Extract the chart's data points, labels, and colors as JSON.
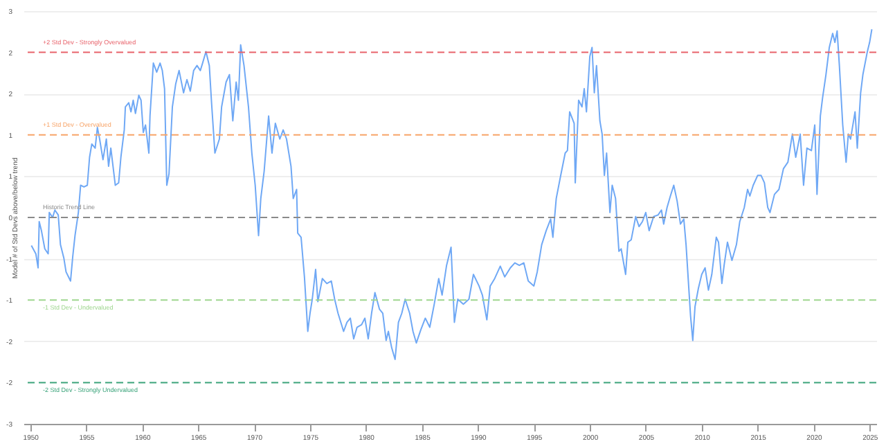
{
  "chart_data": {
    "type": "line",
    "ylabel": "Model # of Std Devs above/below trend",
    "xlim": [
      1949.4,
      2025.6
    ],
    "xticks": [
      {
        "value": 1950,
        "label": "1950"
      },
      {
        "value": 1955,
        "label": "1955"
      },
      {
        "value": 1960,
        "label": "1960"
      },
      {
        "value": 1965,
        "label": "1965"
      },
      {
        "value": 1970,
        "label": "1970"
      },
      {
        "value": 1975,
        "label": "1975"
      },
      {
        "value": 1980,
        "label": "1980"
      },
      {
        "value": 1985,
        "label": "1985"
      },
      {
        "value": 1990,
        "label": "1990"
      },
      {
        "value": 1995,
        "label": "1995"
      },
      {
        "value": 2000,
        "label": "2000"
      },
      {
        "value": 2005,
        "label": "2005"
      },
      {
        "value": 2010,
        "label": "2010"
      },
      {
        "value": 2015,
        "label": "2015"
      },
      {
        "value": 2020,
        "label": "2020"
      },
      {
        "value": 2025,
        "label": "2025"
      }
    ],
    "ylim": [
      -2.5,
      2.5
    ],
    "yticks": [
      {
        "value": -2.5,
        "label": "-3"
      },
      {
        "value": -2,
        "label": "-2"
      },
      {
        "value": -1.5,
        "label": "-2"
      },
      {
        "value": -1,
        "label": "-1"
      },
      {
        "value": -0.5,
        "label": "-1"
      },
      0,
      {
        "value": 0.5,
        "label": "1"
      },
      1,
      {
        "value": 1.5,
        "label": "2"
      },
      2,
      {
        "value": 2.5,
        "label": "3"
      }
    ],
    "grid": "y",
    "marker": "none",
    "line_style": "solid",
    "series": [
      {
        "color": "#6fa8f5",
        "x": [
          1950.1,
          1950.5,
          1950.7,
          1950.8,
          1951.0,
          1951.3,
          1951.6,
          1951.7,
          1952.0,
          1952.2,
          1952.5,
          1952.7,
          1953.0,
          1953.2,
          1953.6,
          1953.8,
          1954.0,
          1954.3,
          1954.5,
          1954.8,
          1955.1,
          1955.3,
          1955.5,
          1955.8,
          1956.0,
          1956.2,
          1956.5,
          1956.8,
          1957.0,
          1957.2,
          1957.6,
          1957.9,
          1958.1,
          1958.4,
          1958.5,
          1958.8,
          1959.0,
          1959.2,
          1959.4,
          1959.7,
          1959.9,
          1960.1,
          1960.3,
          1960.6,
          1960.7,
          1961.0,
          1961.3,
          1961.6,
          1961.8,
          1962.0,
          1962.2,
          1962.4,
          1962.7,
          1963.0,
          1963.3,
          1963.7,
          1964.0,
          1964.3,
          1964.6,
          1964.9,
          1965.2,
          1965.4,
          1965.7,
          1966.0,
          1966.2,
          1966.5,
          1966.9,
          1967.1,
          1967.5,
          1967.8,
          1968.1,
          1968.4,
          1968.6,
          1968.8,
          1969.1,
          1969.5,
          1969.8,
          1970.1,
          1970.4,
          1970.6,
          1970.9,
          1971.3,
          1971.6,
          1971.9,
          1972.3,
          1972.6,
          1972.9,
          1973.3,
          1973.5,
          1973.8,
          1973.9,
          1974.2,
          1974.5,
          1974.8,
          1975.0,
          1975.2,
          1975.5,
          1975.7,
          1976.1,
          1976.5,
          1976.9,
          1977.2,
          1977.5,
          1978.0,
          1978.3,
          1978.6,
          1978.9,
          1979.2,
          1979.6,
          1979.9,
          1980.2,
          1980.5,
          1980.8,
          1981.2,
          1981.5,
          1981.8,
          1982.0,
          1982.3,
          1982.6,
          1982.9,
          1983.2,
          1983.5,
          1983.9,
          1984.2,
          1984.5,
          1984.9,
          1985.3,
          1985.7,
          1986.1,
          1986.5,
          1986.8,
          1987.2,
          1987.6,
          1987.9,
          1988.2,
          1988.7,
          1989.2,
          1989.6,
          1990.1,
          1990.4,
          1990.8,
          1991.1,
          1991.5,
          1992.0,
          1992.4,
          1992.9,
          1993.3,
          1993.7,
          1994.1,
          1994.5,
          1995.0,
          1995.3,
          1995.7,
          1996.1,
          1996.5,
          1996.7,
          1997.0,
          1997.4,
          1997.8,
          1998.0,
          1998.2,
          1998.6,
          1998.7,
          1999.0,
          1999.3,
          1999.5,
          1999.7,
          2000.0,
          2000.2,
          2000.4,
          2000.6,
          2000.9,
          2001.1,
          2001.3,
          2001.5,
          2001.8,
          2002.0,
          2002.3,
          2002.6,
          2002.8,
          2003.2,
          2003.4,
          2003.7,
          2004.1,
          2004.4,
          2004.7,
          2005.0,
          2005.3,
          2005.7,
          2006.1,
          2006.4,
          2006.6,
          2006.9,
          2007.2,
          2007.5,
          2007.8,
          2008.1,
          2008.4,
          2008.6,
          2009.0,
          2009.2,
          2009.4,
          2009.7,
          2010.0,
          2010.3,
          2010.6,
          2010.9,
          2011.3,
          2011.5,
          2011.8,
          2012.0,
          2012.3,
          2012.7,
          2013.1,
          2013.4,
          2013.8,
          2014.1,
          2014.3,
          2014.6,
          2015.0,
          2015.3,
          2015.6,
          2015.9,
          2016.1,
          2016.5,
          2016.9,
          2017.3,
          2017.7,
          2018.1,
          2018.4,
          2018.8,
          2019.1,
          2019.4,
          2019.8,
          2020.1,
          2020.3,
          2020.6,
          2020.8,
          2021.1,
          2021.4,
          2021.7,
          2021.9,
          2022.1,
          2022.3,
          2022.6,
          2022.9,
          2023.1,
          2023.3,
          2023.7,
          2023.9,
          2024.2,
          2024.4,
          2024.8,
          2025.0,
          2025.2
        ],
        "values": [
          -0.34,
          -0.44,
          -0.61,
          -0.05,
          -0.16,
          -0.38,
          -0.44,
          0.06,
          0.0,
          0.09,
          0.03,
          -0.33,
          -0.49,
          -0.66,
          -0.77,
          -0.47,
          -0.22,
          0.06,
          0.39,
          0.37,
          0.39,
          0.73,
          0.89,
          0.84,
          1.09,
          0.95,
          0.7,
          0.95,
          0.62,
          0.84,
          0.39,
          0.42,
          0.73,
          1.06,
          1.34,
          1.39,
          1.28,
          1.42,
          1.26,
          1.48,
          1.42,
          1.03,
          1.12,
          0.78,
          1.23,
          1.87,
          1.76,
          1.87,
          1.78,
          1.56,
          0.39,
          0.53,
          1.34,
          1.62,
          1.78,
          1.51,
          1.67,
          1.53,
          1.78,
          1.84,
          1.78,
          1.87,
          2.01,
          1.84,
          1.39,
          0.78,
          0.95,
          1.34,
          1.64,
          1.73,
          1.17,
          1.64,
          1.42,
          2.09,
          1.84,
          1.34,
          0.78,
          0.39,
          -0.22,
          0.23,
          0.56,
          1.23,
          0.78,
          1.14,
          0.95,
          1.06,
          0.95,
          0.62,
          0.23,
          0.34,
          -0.19,
          -0.24,
          -0.72,
          -1.38,
          -1.16,
          -0.99,
          -0.63,
          -1.02,
          -0.74,
          -0.8,
          -0.77,
          -0.99,
          -1.16,
          -1.38,
          -1.27,
          -1.22,
          -1.47,
          -1.33,
          -1.3,
          -1.22,
          -1.47,
          -1.16,
          -0.91,
          -1.11,
          -1.16,
          -1.49,
          -1.38,
          -1.58,
          -1.72,
          -1.27,
          -1.16,
          -0.99,
          -1.16,
          -1.38,
          -1.52,
          -1.36,
          -1.22,
          -1.33,
          -1.05,
          -0.74,
          -0.94,
          -0.58,
          -0.36,
          -1.27,
          -0.99,
          -1.05,
          -0.99,
          -0.69,
          -0.83,
          -0.94,
          -1.24,
          -0.83,
          -0.74,
          -0.59,
          -0.72,
          -0.61,
          -0.55,
          -0.58,
          -0.55,
          -0.77,
          -0.83,
          -0.66,
          -0.33,
          -0.16,
          -0.02,
          -0.24,
          0.23,
          0.51,
          0.78,
          0.81,
          1.28,
          1.14,
          0.42,
          1.42,
          1.34,
          1.56,
          1.28,
          1.95,
          2.06,
          1.51,
          1.84,
          1.17,
          1.01,
          0.51,
          0.78,
          0.06,
          0.39,
          0.23,
          -0.41,
          -0.38,
          -0.69,
          -0.3,
          -0.27,
          0.01,
          -0.11,
          -0.05,
          0.06,
          -0.16,
          0.01,
          0.03,
          0.09,
          -0.08,
          0.12,
          0.26,
          0.39,
          0.2,
          -0.08,
          -0.02,
          -0.33,
          -1.19,
          -1.49,
          -1.08,
          -0.86,
          -0.69,
          -0.61,
          -0.88,
          -0.69,
          -0.24,
          -0.3,
          -0.8,
          -0.58,
          -0.3,
          -0.52,
          -0.33,
          -0.05,
          0.12,
          0.34,
          0.26,
          0.39,
          0.51,
          0.51,
          0.42,
          0.12,
          0.06,
          0.28,
          0.34,
          0.59,
          0.67,
          1.01,
          0.73,
          1.01,
          0.39,
          0.84,
          0.81,
          1.12,
          0.28,
          1.23,
          1.45,
          1.73,
          2.06,
          2.23,
          2.12,
          2.26,
          1.84,
          1.12,
          0.67,
          1.01,
          0.95,
          1.28,
          0.84,
          1.51,
          1.73,
          2.01,
          2.12,
          2.28
        ]
      }
    ],
    "ref_lines": [
      {
        "axis": "y",
        "value": 2,
        "label": "+2 Std Dev - Strongly Overvalued",
        "color": "#e8636b",
        "line_style": "dashed"
      },
      {
        "axis": "y",
        "value": 1,
        "label": "+1 Std Dev - Overvalued",
        "color": "#f7a468",
        "line_style": "dashed"
      },
      {
        "axis": "y",
        "value": 0,
        "label": "Historic Trend Line",
        "color": "#8a8a8a",
        "line_style": "dashed"
      },
      {
        "axis": "y",
        "value": -1,
        "label": "-1 Std Dev - Undervalued",
        "color": "#9fd68f",
        "line_style": "dashed"
      },
      {
        "axis": "y",
        "value": -2,
        "label": "-2 Std Dev - Strongly Undervalued",
        "color": "#3aa37a",
        "line_style": "dashed"
      }
    ]
  }
}
